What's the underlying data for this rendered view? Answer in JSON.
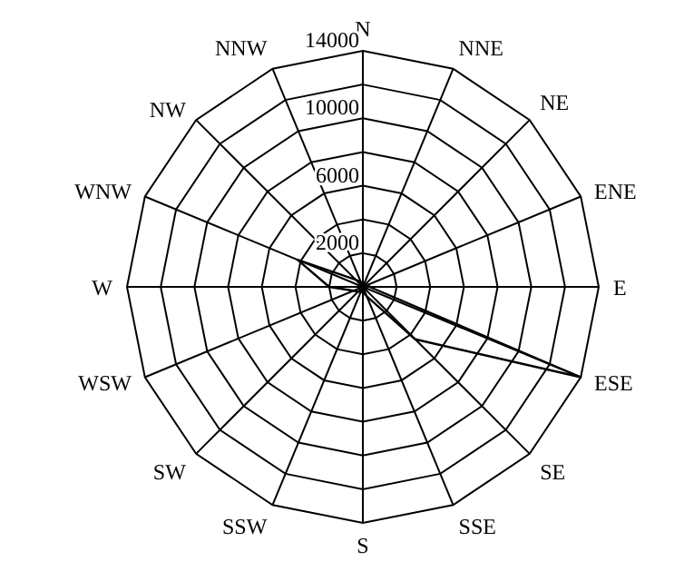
{
  "chart_data": {
    "type": "radar",
    "categories": [
      "N",
      "NNE",
      "NE",
      "ENE",
      "E",
      "ESE",
      "SE",
      "SSE",
      "S",
      "SSW",
      "SW",
      "WSW",
      "W",
      "WNW",
      "NW",
      "NNW"
    ],
    "series": [
      {
        "color": "#000000",
        "values": [
          300,
          200,
          200,
          300,
          400,
          14000,
          4400,
          600,
          300,
          300,
          400,
          600,
          2000,
          4200,
          600,
          300
        ]
      }
    ],
    "ylim": [
      0,
      14000
    ],
    "yticks": [
      2000,
      6000,
      10000,
      14000
    ],
    "grid": true,
    "marker": "none"
  }
}
